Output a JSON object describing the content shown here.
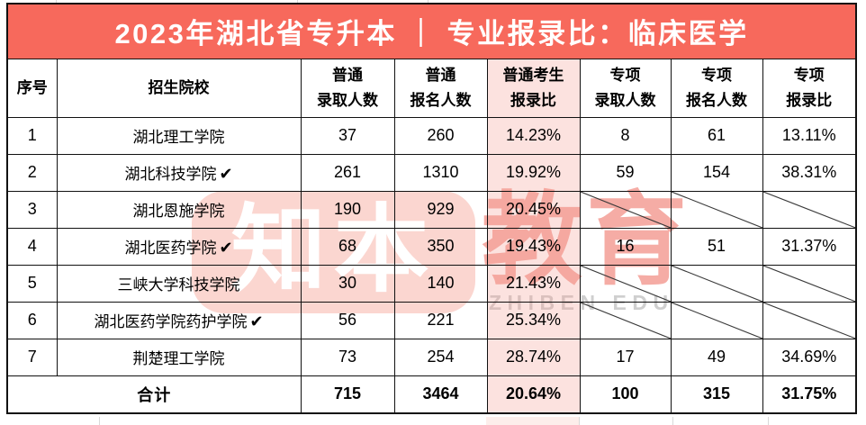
{
  "banner": {
    "title": "2023年湖北省专升本 ｜ 专业报录比：临床医学"
  },
  "columns": {
    "index": "序号",
    "school": "招生院校",
    "reg_admit": "普通\n录取人数",
    "reg_apply": "普通\n报名人数",
    "reg_ratio": "普通考生\n报录比",
    "sp_admit": "专项\n录取人数",
    "sp_apply": "专项\n报名人数",
    "sp_ratio": "专项\n报录比"
  },
  "check_glyph": "✔",
  "rows": [
    {
      "index": "1",
      "school": "湖北理工学院",
      "checked": false,
      "reg_admit": "37",
      "reg_apply": "260",
      "reg_ratio": "14.23%",
      "sp_admit": "8",
      "sp_apply": "61",
      "sp_ratio": "13.11%"
    },
    {
      "index": "2",
      "school": "湖北科技学院",
      "checked": true,
      "reg_admit": "261",
      "reg_apply": "1310",
      "reg_ratio": "19.92%",
      "sp_admit": "59",
      "sp_apply": "154",
      "sp_ratio": "38.31%"
    },
    {
      "index": "3",
      "school": "湖北恩施学院",
      "checked": false,
      "reg_admit": "190",
      "reg_apply": "929",
      "reg_ratio": "20.45%",
      "sp_admit": null,
      "sp_apply": null,
      "sp_ratio": null
    },
    {
      "index": "4",
      "school": "湖北医药学院",
      "checked": true,
      "reg_admit": "68",
      "reg_apply": "350",
      "reg_ratio": "19.43%",
      "sp_admit": "16",
      "sp_apply": "51",
      "sp_ratio": "31.37%"
    },
    {
      "index": "5",
      "school": "三峡大学科技学院",
      "checked": false,
      "reg_admit": "30",
      "reg_apply": "140",
      "reg_ratio": "21.43%",
      "sp_admit": null,
      "sp_apply": null,
      "sp_ratio": null
    },
    {
      "index": "6",
      "school": "湖北医药学院药护学院",
      "checked": true,
      "reg_admit": "56",
      "reg_apply": "221",
      "reg_ratio": "25.34%",
      "sp_admit": null,
      "sp_apply": null,
      "sp_ratio": null
    },
    {
      "index": "7",
      "school": "荆楚理工学院",
      "checked": false,
      "reg_admit": "73",
      "reg_apply": "254",
      "reg_ratio": "28.74%",
      "sp_admit": "17",
      "sp_apply": "49",
      "sp_ratio": "34.69%"
    }
  ],
  "total": {
    "label": "合计",
    "reg_admit": "715",
    "reg_apply": "3464",
    "reg_ratio": "20.64%",
    "sp_admit": "100",
    "sp_apply": "315",
    "sp_ratio": "31.75%"
  },
  "watermark": {
    "badge": "知本",
    "brand": "教育",
    "sub": "ZHIBEN EDU"
  },
  "colors": {
    "banner_red": "#F7695C",
    "highlight_pink": "#FCE3DF",
    "watermark_badge": "#FBD6D0",
    "watermark_brand": "#F5ACA5",
    "watermark_sub": "#CFCFCF",
    "border_black": "#111111"
  }
}
